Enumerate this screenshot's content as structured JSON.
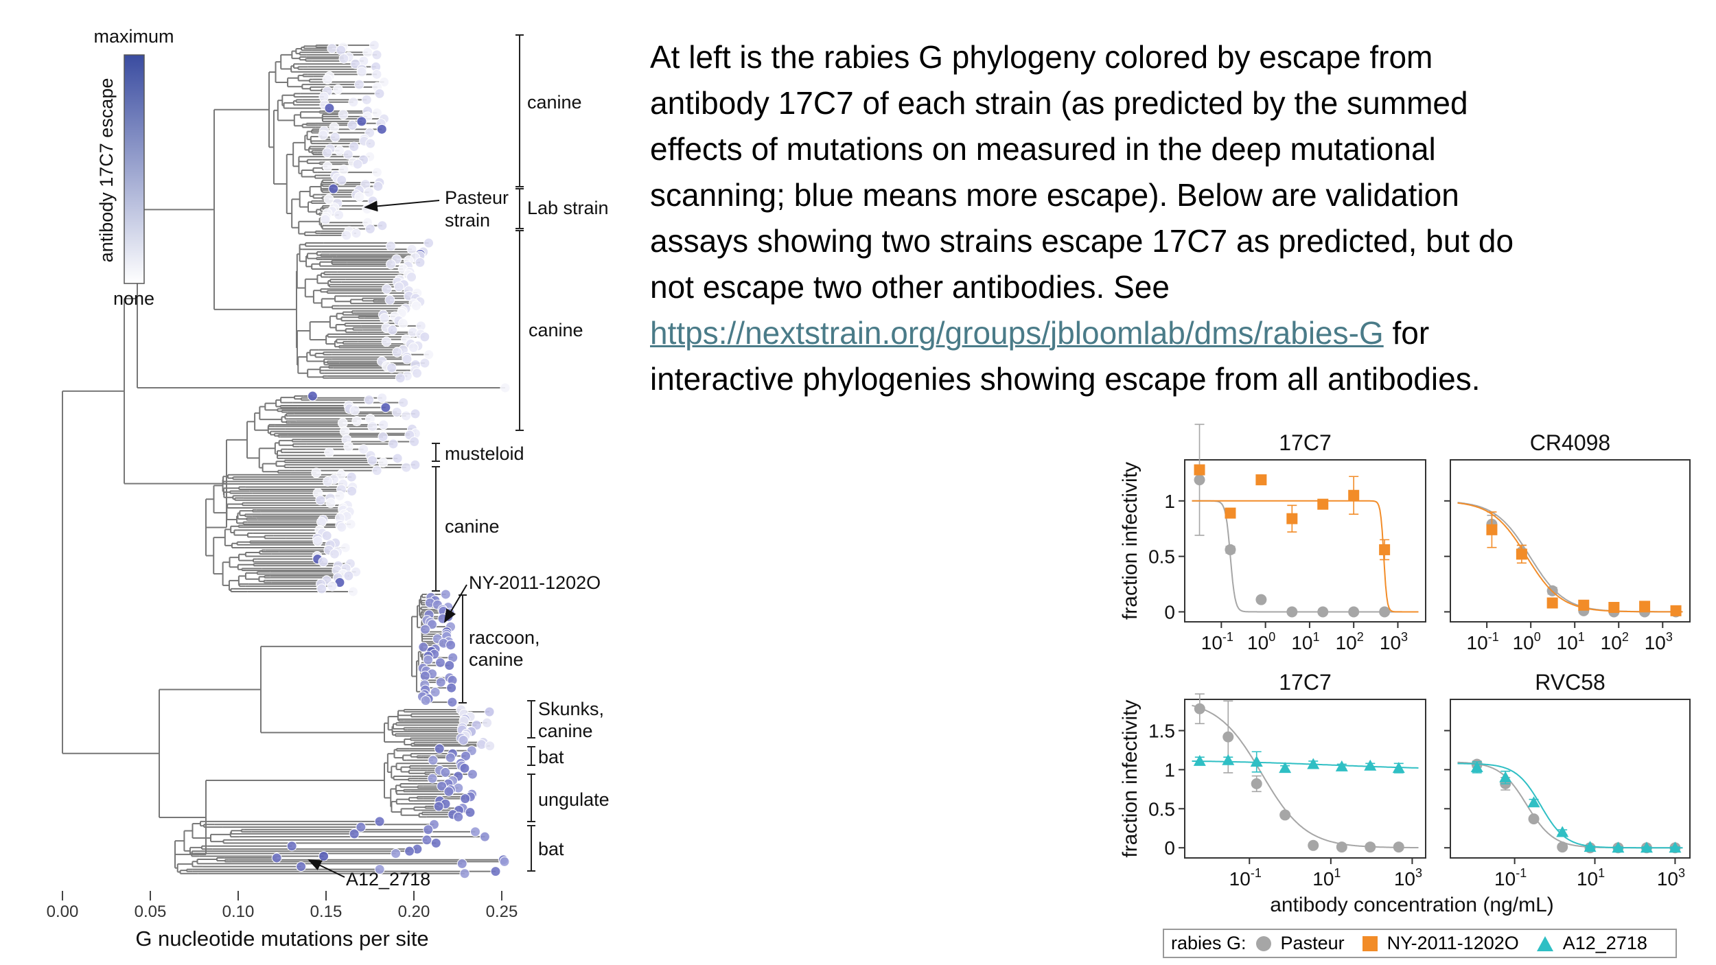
{
  "caption": {
    "lines": [
      "At left is the rabies G phylogeny colored by escape from",
      "antibody 17C7 of each strain (as predicted by the summed",
      "effects of mutations on measured in the deep mutational",
      "scanning; blue means more escape). Below are validation",
      "assays showing two strains escape 17C7 as predicted, but do",
      "not escape two other antibodies. See"
    ],
    "link": "https://nextstrain.org/groups/jbloomlab/dms/rabies-G",
    "link_suffix": " for",
    "last_line": "interactive phylogenies showing escape from all antibodies.",
    "link_color": "#4a7b88"
  },
  "tree": {
    "colorbar": {
      "max_label": "maximum",
      "min_label": "none",
      "title": "antibody 17C7 escape",
      "max_color": "#3a4ca0",
      "min_color": "#ffffff"
    },
    "x_axis": {
      "label": "G nucleotide mutations per site",
      "ticks": [
        "0.00",
        "0.05",
        "0.10",
        "0.15",
        "0.20",
        "0.25"
      ],
      "range": [
        0,
        0.25
      ]
    },
    "clades": [
      {
        "label": "canine",
        "escape": "low"
      },
      {
        "label": "Lab strain",
        "escape": "low"
      },
      {
        "label": "canine",
        "escape": "low"
      },
      {
        "label": "musteloid",
        "escape": "low"
      },
      {
        "label": "canine",
        "escape": "low"
      },
      {
        "label": "raccoon,",
        "label2": "canine",
        "escape": "high"
      },
      {
        "label": "Skunks,",
        "label2": "canine",
        "escape": "moderate"
      },
      {
        "label": "bat",
        "escape": "high"
      },
      {
        "label": "ungulate",
        "escape": "high"
      },
      {
        "label": "bat",
        "escape": "high"
      }
    ],
    "annotations": {
      "pasteur": [
        "Pasteur",
        "strain"
      ],
      "ny": "NY-2011-1202O",
      "a12": "A12_2718"
    }
  },
  "chart_data": [
    {
      "type": "scatter",
      "title": "17C7",
      "ylabel": "fraction infectivity",
      "xscale": "log",
      "xlim": [
        0.0148,
        4270
      ],
      "ylim": [
        -0.09,
        1.37
      ],
      "xticks": [
        0.1,
        1,
        10,
        100,
        1000
      ],
      "xtick_labels": [
        [
          "10",
          "-1"
        ],
        [
          "10",
          "0"
        ],
        [
          "10",
          "1"
        ],
        [
          "10",
          "2"
        ],
        [
          "10",
          "3"
        ]
      ],
      "yticks": [
        0,
        0.5,
        1
      ],
      "ytick_labels": [
        "0",
        "0.5",
        "1"
      ],
      "series": [
        {
          "name": "Pasteur",
          "color": "#a6a6a6",
          "marker": "circle",
          "x": [
            0.032,
            0.16,
            0.8,
            4,
            20,
            100,
            500
          ],
          "y": [
            1.19,
            0.56,
            0.11,
            0,
            0,
            0,
            0
          ],
          "err": [
            0.5,
            0.03,
            0.02,
            0.01,
            0.01,
            0.01,
            0.01
          ],
          "fit": {
            "top": 1,
            "bottom": 0,
            "ic50": 0.16,
            "hill": 8
          }
        },
        {
          "name": "NY-2011-1202O",
          "color": "#f28c28",
          "marker": "square",
          "x": [
            0.032,
            0.16,
            0.8,
            4,
            20,
            100,
            500
          ],
          "y": [
            1.28,
            0.89,
            1.19,
            0.84,
            0.97,
            1.05,
            0.56
          ],
          "err": [
            0.03,
            0.03,
            0.03,
            0.12,
            0.03,
            0.17,
            0.09
          ],
          "fit": {
            "top": 1,
            "bottom": 0,
            "ic50": 480,
            "hill": 12
          }
        }
      ]
    },
    {
      "type": "scatter",
      "title": "CR4098",
      "ylabel": "",
      "xscale": "log",
      "xlim": [
        0.0148,
        4170
      ],
      "ylim": [
        -0.09,
        1.37
      ],
      "xticks": [
        0.1,
        1,
        10,
        100,
        1000
      ],
      "xtick_labels": [
        [
          "10",
          "-1"
        ],
        [
          "10",
          "0"
        ],
        [
          "10",
          "1"
        ],
        [
          "10",
          "2"
        ],
        [
          "10",
          "3"
        ]
      ],
      "yticks": [
        0,
        0.5,
        1
      ],
      "ytick_labels": [],
      "series": [
        {
          "name": "Pasteur",
          "color": "#a6a6a6",
          "marker": "circle",
          "x": [
            0.13,
            0.62,
            3.1,
            16,
            78,
            390,
            2000
          ],
          "y": [
            0.79,
            0.54,
            0.19,
            0.01,
            0,
            0,
            0
          ],
          "err": [
            0.08,
            0.06,
            0.03,
            0.01,
            0.01,
            0.01,
            0.01
          ],
          "fit": {
            "top": 1,
            "bottom": 0,
            "ic50": 0.95,
            "hill": 1.1
          }
        },
        {
          "name": "NY-2011-1202O",
          "color": "#f28c28",
          "marker": "square",
          "x": [
            0.13,
            0.62,
            3.1,
            16,
            78,
            390,
            2000
          ],
          "y": [
            0.74,
            0.52,
            0.08,
            0.06,
            0.04,
            0.05,
            0.01
          ],
          "err": [
            0.16,
            0.08,
            0.02,
            0.03,
            0.03,
            0.03,
            0.02
          ],
          "fit": {
            "top": 1,
            "bottom": 0,
            "ic50": 0.8,
            "hill": 1.1
          }
        }
      ]
    },
    {
      "type": "scatter",
      "title": "17C7",
      "ylabel": "fraction infectivity",
      "xscale": "log",
      "xlim": [
        0.00257,
        2140
      ],
      "ylim": [
        -0.13,
        1.9
      ],
      "xticks": [
        0.1,
        10,
        1000
      ],
      "xtick_labels": [
        [
          "10",
          "-1"
        ],
        [
          "10",
          "1"
        ],
        [
          "10",
          "3"
        ]
      ],
      "yticks": [
        0,
        0.5,
        1,
        1.5
      ],
      "ytick_labels": [
        "0",
        "0.5",
        "1",
        "1.5"
      ],
      "series": [
        {
          "name": "Pasteur",
          "color": "#a6a6a6",
          "marker": "circle",
          "x": [
            0.006,
            0.03,
            0.15,
            0.75,
            3.7,
            18.6,
            93,
            466
          ],
          "y": [
            1.78,
            1.42,
            0.82,
            0.42,
            0.03,
            0.01,
            0.01,
            0.01
          ],
          "err": [
            0.19,
            0.46,
            0.1,
            0.02,
            0.02,
            0.01,
            0.01,
            0.01
          ],
          "fit": {
            "top": 1.9,
            "bottom": 0,
            "ic50": 0.2,
            "hill": 0.8
          }
        },
        {
          "name": "A12_2718",
          "color": "#2fbfc4",
          "marker": "triangle",
          "x": [
            0.006,
            0.03,
            0.15,
            0.75,
            3.7,
            18.6,
            93,
            466
          ],
          "y": [
            1.11,
            1.12,
            1.1,
            1.02,
            1.07,
            1.04,
            1.05,
            1.02
          ],
          "err": [
            0.05,
            0.04,
            0.13,
            0.03,
            0.04,
            0.03,
            0.03,
            0.06
          ],
          "fit": {
            "top": 1.12,
            "bottom": 1.0,
            "ic50": 10,
            "hill": 0.3
          }
        }
      ]
    },
    {
      "type": "scatter",
      "title": "RVC58",
      "ylabel": "",
      "xscale": "log",
      "xlim": [
        0.0025,
        2340
      ],
      "ylim": [
        -0.13,
        1.9
      ],
      "xticks": [
        0.1,
        10,
        1000
      ],
      "xtick_labels": [
        [
          "10",
          "-1"
        ],
        [
          "10",
          "1"
        ],
        [
          "10",
          "3"
        ]
      ],
      "yticks": [
        0,
        0.5,
        1,
        1.5
      ],
      "ytick_labels": [],
      "series": [
        {
          "name": "Pasteur",
          "color": "#a6a6a6",
          "marker": "circle",
          "x": [
            0.0115,
            0.059,
            0.3,
            1.55,
            7.6,
            38,
            195,
            1000
          ],
          "y": [
            1.07,
            0.82,
            0.37,
            0.01,
            0,
            0,
            0,
            0
          ],
          "err": [
            0.04,
            0.08,
            0.02,
            0.01,
            0.01,
            0.01,
            0.01,
            0.01
          ],
          "fit": {
            "top": 1.1,
            "bottom": 0,
            "ic50": 0.2,
            "hill": 1.3
          }
        },
        {
          "name": "A12_2718",
          "color": "#2fbfc4",
          "marker": "triangle",
          "x": [
            0.0115,
            0.059,
            0.3,
            1.55,
            7.6,
            38,
            195,
            1000
          ],
          "y": [
            1.03,
            0.9,
            0.58,
            0.2,
            0.01,
            0,
            0,
            0
          ],
          "err": [
            0.07,
            0.08,
            0.04,
            0.03,
            0.01,
            0.01,
            0.01,
            0.01
          ],
          "fit": {
            "top": 1.08,
            "bottom": 0,
            "ic50": 0.45,
            "hill": 1.4
          }
        }
      ]
    }
  ],
  "shared_xlabel": "antibody concentration (ng/mL)",
  "legend": {
    "title": "rabies G:",
    "items": [
      {
        "label": "Pasteur",
        "color": "#a6a6a6",
        "marker": "circle"
      },
      {
        "label": "NY-2011-1202O",
        "color": "#f28c28",
        "marker": "square"
      },
      {
        "label": "A12_2718",
        "color": "#2fbfc4",
        "marker": "triangle"
      }
    ]
  }
}
